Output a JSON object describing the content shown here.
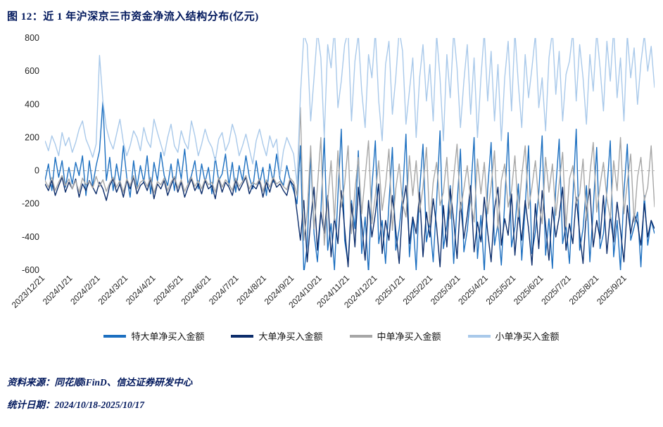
{
  "title": "图 12：近 1 年沪深京三市资金净流入结构分布(亿元)",
  "footer": {
    "source": "资料来源：同花顺iFinD、信达证券研发中心",
    "date": "统计日期：2024/10/18-2025/10/17"
  },
  "legend": [
    {
      "label": "特大单净买入金额",
      "color": "#1c6fc0"
    },
    {
      "label": "大单净买入金额",
      "color": "#0c2d6b"
    },
    {
      "label": "中单净买入金额",
      "color": "#a6a6a6"
    },
    {
      "label": "小单净买入金额",
      "color": "#a9c9ea"
    }
  ],
  "chart_data": {
    "type": "line",
    "title": "图 12：近 1 年沪深京三市资金净流入结构分布(亿元)",
    "ylabel": "亿元",
    "ylim": [
      -600,
      800
    ],
    "yticks": [
      800,
      600,
      400,
      200,
      0,
      -200,
      -400,
      -600
    ],
    "grid": "zero-line-dashed",
    "legend_position": "bottom",
    "x_labels": [
      "2023/12/21",
      "2024/1/21",
      "2024/2/21",
      "2024/3/21",
      "2024/4/21",
      "2024/5/21",
      "2024/6/21",
      "2024/7/21",
      "2024/8/21",
      "2024/9/21",
      "2024/10/21",
      "2024/11/21",
      "2024/12/21",
      "2025/1/21",
      "2025/2/21",
      "2025/3/21",
      "2025/4/21",
      "2025/5/21",
      "2025/6/21",
      "2025/7/21",
      "2025/8/21",
      "2025/9/21"
    ],
    "series": [
      {
        "name": "特大单净买入金额",
        "color": "#1c6fc0",
        "values": [
          -60,
          40,
          -120,
          80,
          -40,
          60,
          -100,
          20,
          -80,
          50,
          -30,
          90,
          -150,
          60,
          -90,
          30,
          120,
          420,
          -60,
          80,
          -120,
          40,
          -80,
          150,
          -40,
          -160,
          60,
          -100,
          30,
          -70,
          90,
          -140,
          50,
          -60,
          110,
          -30,
          -90,
          40,
          -120,
          70,
          -50,
          130,
          -80,
          -30,
          60,
          -110,
          40,
          -70,
          20,
          -140,
          80,
          -60,
          -20,
          100,
          -90,
          50,
          -130,
          30,
          -60,
          90,
          -40,
          -110,
          60,
          -80,
          20,
          -150,
          40,
          -70,
          100,
          -50,
          -90,
          30,
          -60,
          -120,
          -200,
          150,
          -620,
          -450,
          100,
          -380,
          -550,
          -250,
          200,
          -480,
          -320,
          -600,
          -150,
          250,
          -420,
          -560,
          -180,
          -350,
          120,
          -500,
          -280,
          -620,
          -100,
          180,
          -440,
          -300,
          -560,
          -200,
          140,
          -480,
          -350,
          -150,
          220,
          -520,
          -280,
          -600,
          -120,
          160,
          -430,
          -310,
          -550,
          -180,
          240,
          -470,
          -330,
          -90,
          -560,
          -210,
          130,
          -490,
          -360,
          -140,
          200,
          -530,
          -270,
          -610,
          -110,
          170,
          -450,
          -320,
          -570,
          -190,
          230,
          -460,
          -340,
          -80,
          -540,
          -220,
          150,
          -500,
          -370,
          -130,
          210,
          -510,
          -290,
          -590,
          -100,
          190,
          -440,
          -330,
          -560,
          -170,
          250,
          -480,
          -350,
          -90,
          -550,
          -230,
          140,
          -470,
          -380,
          -120,
          180,
          -520,
          -300,
          -600,
          -130,
          160,
          -420,
          -340,
          -250,
          -580,
          -150,
          -450,
          -300,
          -380
        ]
      },
      {
        "name": "大单净买入金额",
        "color": "#0c2d6b",
        "values": [
          -80,
          -120,
          -60,
          -150,
          -90,
          -40,
          -130,
          -70,
          -110,
          -50,
          -160,
          -80,
          -120,
          -60,
          -100,
          -140,
          -70,
          -110,
          -180,
          -90,
          -50,
          -130,
          -80,
          -160,
          -60,
          -110,
          -40,
          -140,
          -90,
          -70,
          -120,
          -50,
          -170,
          -80,
          -110,
          -60,
          -150,
          -90,
          -40,
          -130,
          -70,
          -160,
          -100,
          -50,
          -120,
          -80,
          -140,
          -60,
          -110,
          -90,
          -170,
          -50,
          -130,
          -70,
          -100,
          -150,
          -60,
          -120,
          -80,
          -40,
          -140,
          -90,
          -110,
          -60,
          -160,
          -70,
          -130,
          -50,
          -100,
          -80,
          -120,
          -150,
          -60,
          -90,
          -250,
          -420,
          -180,
          -550,
          -300,
          -100,
          -480,
          -250,
          -380,
          -150,
          -520,
          -280,
          -440,
          -120,
          -350,
          -580,
          -200,
          -460,
          -100,
          -320,
          -540,
          -180,
          -400,
          -260,
          -80,
          -500,
          -300,
          -420,
          -150,
          -360,
          -560,
          -220,
          -90,
          -440,
          -280,
          -380,
          -130,
          -520,
          -250,
          -400,
          -170,
          -340,
          -580,
          -210,
          -460,
          -110,
          -300,
          -530,
          -190,
          -410,
          -270,
          -90,
          -490,
          -310,
          -430,
          -160,
          -370,
          -550,
          -230,
          -100,
          -450,
          -290,
          -390,
          -140,
          -510,
          -260,
          -420,
          -180,
          -350,
          -570,
          -200,
          -470,
          -120,
          -330,
          -540,
          -220,
          -400,
          -280,
          -100,
          -480,
          -320,
          -440,
          -160,
          -380,
          -560,
          -240,
          -110,
          -460,
          -300,
          -410,
          -150,
          -500,
          -270,
          -430,
          -190,
          -360,
          -550,
          -210,
          -380,
          -260,
          -320,
          -450,
          -200,
          -400,
          -300,
          -350
        ]
      },
      {
        "name": "中单净买入金额",
        "color": "#a6a6a6",
        "values": [
          -60,
          -100,
          -40,
          -120,
          -70,
          -30,
          -90,
          -50,
          -110,
          -60,
          -130,
          -45,
          -85,
          -65,
          -105,
          -35,
          -95,
          -55,
          -125,
          -75,
          -40,
          -100,
          -60,
          -130,
          -50,
          -90,
          -30,
          -110,
          -70,
          -55,
          -95,
          -40,
          -135,
          -65,
          -85,
          -45,
          -120,
          -70,
          -35,
          -105,
          -55,
          -125,
          -80,
          -40,
          -95,
          -60,
          -110,
          -50,
          -85,
          -70,
          -130,
          -40,
          -100,
          -55,
          -80,
          -120,
          -45,
          -95,
          -65,
          -30,
          -110,
          -70,
          -85,
          -50,
          -125,
          -55,
          -100,
          -40,
          -80,
          -65,
          -95,
          -115,
          -45,
          -70,
          -150,
          380,
          -420,
          -250,
          150,
          -350,
          -100,
          200,
          -450,
          -180,
          60,
          -300,
          120,
          -220,
          -80,
          150,
          -380,
          -120,
          80,
          -260,
          -40,
          180,
          -320,
          -150,
          60,
          -240,
          -90,
          130,
          -360,
          -110,
          40,
          -200,
          -280,
          90,
          -150,
          60,
          -250,
          -100,
          140,
          -330,
          -70,
          50,
          -210,
          -130,
          80,
          -290,
          -40,
          160,
          -240,
          -110,
          30,
          -180,
          -310,
          70,
          -140,
          50,
          -260,
          -90,
          120,
          -350,
          -60,
          40,
          -220,
          -120,
          90,
          -280,
          -30,
          150,
          -230,
          -100,
          60,
          -190,
          -320,
          80,
          -130,
          40,
          -270,
          -80,
          110,
          -340,
          -50,
          30,
          -200,
          -140,
          70,
          -300,
          -20,
          170,
          -250,
          -90,
          50,
          -170,
          -290,
          60,
          -120,
          200,
          -260,
          -70,
          100,
          -310,
          -40,
          80,
          -180,
          -100,
          150,
          -220
        ]
      },
      {
        "name": "小单净买入金额",
        "color": "#a9c9ea",
        "values": [
          180,
          120,
          210,
          160,
          90,
          230,
          150,
          200,
          110,
          170,
          250,
          300,
          190,
          140,
          80,
          160,
          695,
          420,
          260,
          180,
          130,
          220,
          310,
          170,
          90,
          150,
          240,
          200,
          120,
          260,
          180,
          140,
          310,
          230,
          160,
          90,
          200,
          280,
          150,
          110,
          240,
          170,
          130,
          300,
          210,
          90,
          160,
          250,
          180,
          140,
          60,
          190,
          230,
          120,
          170,
          280,
          210,
          90,
          150,
          220,
          130,
          40,
          180,
          250,
          160,
          90,
          210,
          140,
          190,
          -30,
          120,
          200,
          150,
          100,
          -80,
          450,
          820,
          760,
          300,
          560,
          840,
          680,
          200,
          760,
          620,
          860,
          380,
          540,
          760,
          840,
          300,
          660,
          820,
          480,
          260,
          700,
          560,
          840,
          420,
          180,
          640,
          780,
          340,
          560,
          850,
          720,
          280,
          480,
          680,
          200,
          560,
          760,
          420,
          640,
          300,
          820,
          560,
          180,
          700,
          440,
          840,
          620,
          260,
          540,
          760,
          340,
          680,
          200,
          560,
          840,
          420,
          720,
          300,
          640,
          180,
          560,
          780,
          360,
          840,
          520,
          260,
          700,
          440,
          620,
          820,
          380,
          560,
          240,
          680,
          840,
          460,
          720,
          300,
          580,
          660,
          840,
          420,
          760,
          560,
          280,
          700,
          480,
          840,
          620,
          360,
          780,
          540,
          860,
          440,
          680,
          300,
          820,
          560,
          740,
          400,
          650,
          820,
          600,
          750,
          500
        ]
      }
    ]
  }
}
